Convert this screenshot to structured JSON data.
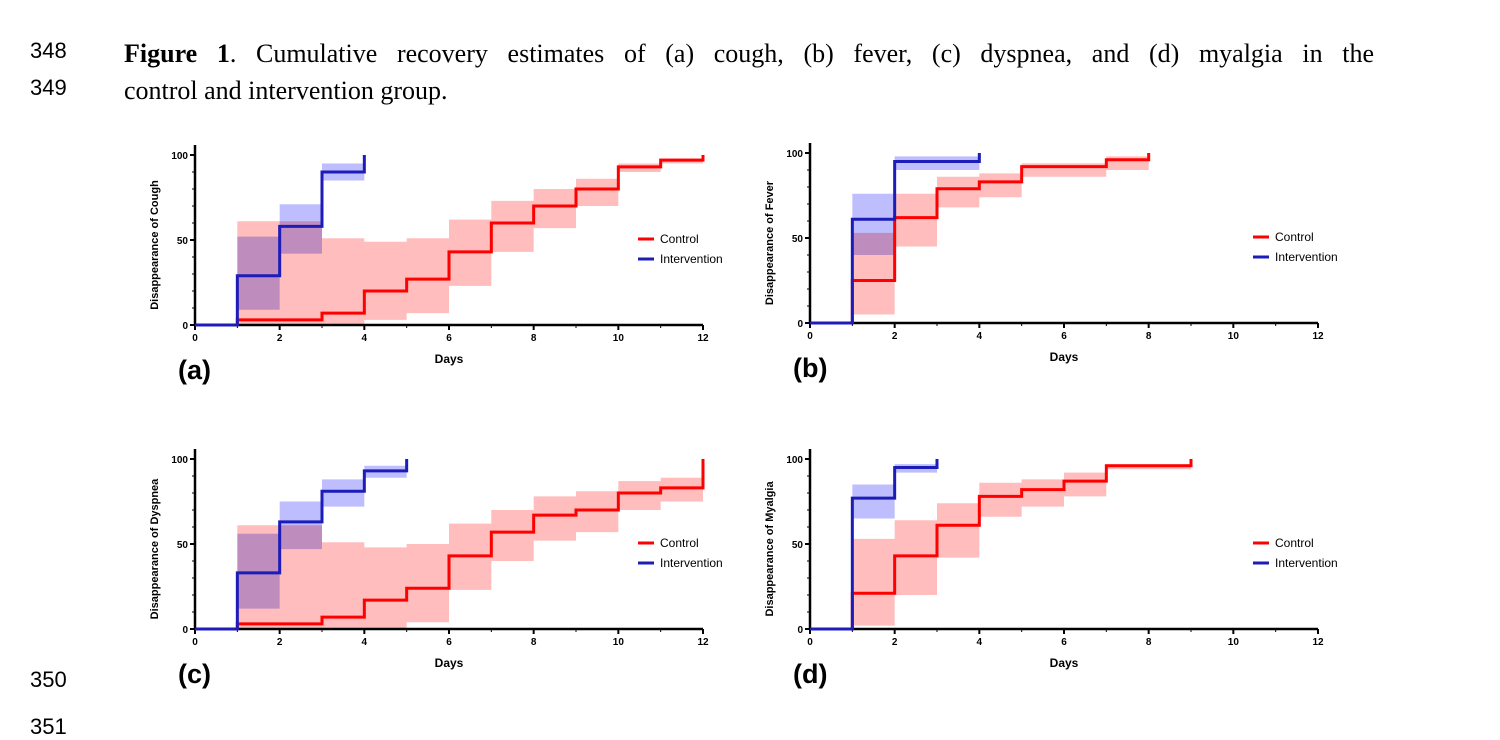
{
  "line_numbers": [
    "348",
    "349",
    "350",
    "351"
  ],
  "caption": {
    "figure_label": "Figure 1",
    "line1_text": ". Cumulative recovery estimates of (a) cough, (b) fever, (c) dyspnea, and (d) myalgia in the",
    "line2_text": "control and intervention group."
  },
  "colors": {
    "control_line": "#ff0000",
    "control_band": "#ffb6b6",
    "intervention_line": "#1c1cb8",
    "intervention_band": "#b3b3ff"
  },
  "chart_data": [
    {
      "type": "line",
      "step": true,
      "panel_label": "(a)",
      "xlabel": "Days",
      "ylabel": "Disappearance of Cough",
      "xlim": [
        0,
        12
      ],
      "ylim": [
        0,
        100
      ],
      "xticks": [
        "0",
        "2",
        "4",
        "6",
        "8",
        "10",
        "12"
      ],
      "yticks": [
        "0",
        "50",
        "100"
      ],
      "legend": [
        "Control",
        "Intervention"
      ],
      "series": [
        {
          "name": "Control",
          "x": [
            0,
            1,
            3,
            4,
            5,
            6,
            7,
            8,
            9,
            10,
            11,
            12
          ],
          "y": [
            0,
            3,
            7,
            20,
            27,
            43,
            60,
            70,
            80,
            93,
            97,
            100
          ],
          "ci_low": [
            0,
            0,
            0,
            3,
            7,
            23,
            43,
            57,
            70,
            90,
            95,
            100
          ],
          "ci_high": [
            0,
            61,
            51,
            49,
            51,
            62,
            73,
            80,
            86,
            95,
            98,
            100
          ]
        },
        {
          "name": "Intervention",
          "x": [
            0,
            1,
            2,
            3,
            4
          ],
          "y": [
            0,
            29,
            58,
            90,
            100
          ],
          "ci_low": [
            0,
            9,
            42,
            85,
            100
          ],
          "ci_high": [
            0,
            52,
            71,
            95,
            100
          ]
        }
      ]
    },
    {
      "type": "line",
      "step": true,
      "panel_label": "(b)",
      "xlabel": "Days",
      "ylabel": "Disappearance of Fever",
      "xlim": [
        0,
        12
      ],
      "ylim": [
        0,
        100
      ],
      "xticks": [
        "0",
        "2",
        "4",
        "6",
        "8",
        "10",
        "12"
      ],
      "yticks": [
        "0",
        "50",
        "100"
      ],
      "legend": [
        "Control",
        "Intervention"
      ],
      "series": [
        {
          "name": "Control",
          "x": [
            0,
            1,
            2,
            3,
            4,
            5,
            7,
            8
          ],
          "y": [
            0,
            25,
            62,
            79,
            83,
            92,
            96,
            100
          ],
          "ci_low": [
            0,
            5,
            45,
            68,
            74,
            86,
            90,
            100
          ],
          "ci_high": [
            0,
            53,
            76,
            86,
            88,
            94,
            98,
            100
          ]
        },
        {
          "name": "Intervention",
          "x": [
            0,
            1,
            2,
            4
          ],
          "y": [
            0,
            61,
            95,
            100
          ],
          "ci_low": [
            0,
            40,
            90,
            100
          ],
          "ci_high": [
            0,
            76,
            98,
            100
          ]
        }
      ]
    },
    {
      "type": "line",
      "step": true,
      "panel_label": "(c)",
      "xlabel": "Days",
      "ylabel": "Disappearance of Dyspnea",
      "xlim": [
        0,
        12
      ],
      "ylim": [
        0,
        100
      ],
      "xticks": [
        "0",
        "2",
        "4",
        "6",
        "8",
        "10",
        "12"
      ],
      "yticks": [
        "0",
        "50",
        "100"
      ],
      "legend": [
        "Control",
        "Intervention"
      ],
      "series": [
        {
          "name": "Control",
          "x": [
            0,
            1,
            3,
            4,
            5,
            6,
            7,
            8,
            9,
            10,
            11,
            12
          ],
          "y": [
            0,
            3,
            7,
            17,
            24,
            43,
            57,
            67,
            70,
            80,
            83,
            100
          ],
          "ci_low": [
            0,
            0,
            0,
            0,
            4,
            23,
            40,
            52,
            57,
            70,
            75,
            100
          ],
          "ci_high": [
            0,
            61,
            51,
            48,
            50,
            62,
            70,
            78,
            81,
            87,
            89,
            100
          ]
        },
        {
          "name": "Intervention",
          "x": [
            0,
            1,
            2,
            3,
            4,
            5
          ],
          "y": [
            0,
            33,
            63,
            81,
            93,
            100
          ],
          "ci_low": [
            0,
            12,
            47,
            72,
            89,
            100
          ],
          "ci_high": [
            0,
            56,
            75,
            88,
            96,
            100
          ]
        }
      ]
    },
    {
      "type": "line",
      "step": true,
      "panel_label": "(d)",
      "xlabel": "Days",
      "ylabel": "Disappearance of Myalgia",
      "xlim": [
        0,
        12
      ],
      "ylim": [
        0,
        100
      ],
      "xticks": [
        "0",
        "2",
        "4",
        "6",
        "8",
        "10",
        "12"
      ],
      "yticks": [
        "0",
        "50",
        "100"
      ],
      "legend": [
        "Control",
        "Intervention"
      ],
      "series": [
        {
          "name": "Control",
          "x": [
            0,
            1,
            2,
            3,
            4,
            5,
            6,
            7,
            9
          ],
          "y": [
            0,
            21,
            43,
            61,
            78,
            82,
            87,
            96,
            100
          ],
          "ci_low": [
            0,
            2,
            20,
            42,
            66,
            72,
            78,
            94,
            100
          ],
          "ci_high": [
            0,
            53,
            64,
            74,
            86,
            88,
            92,
            97,
            100
          ]
        },
        {
          "name": "Intervention",
          "x": [
            0,
            1,
            2,
            3
          ],
          "y": [
            0,
            77,
            95,
            100
          ],
          "ci_low": [
            0,
            65,
            92,
            100
          ],
          "ci_high": [
            0,
            85,
            97,
            100
          ]
        }
      ]
    }
  ]
}
